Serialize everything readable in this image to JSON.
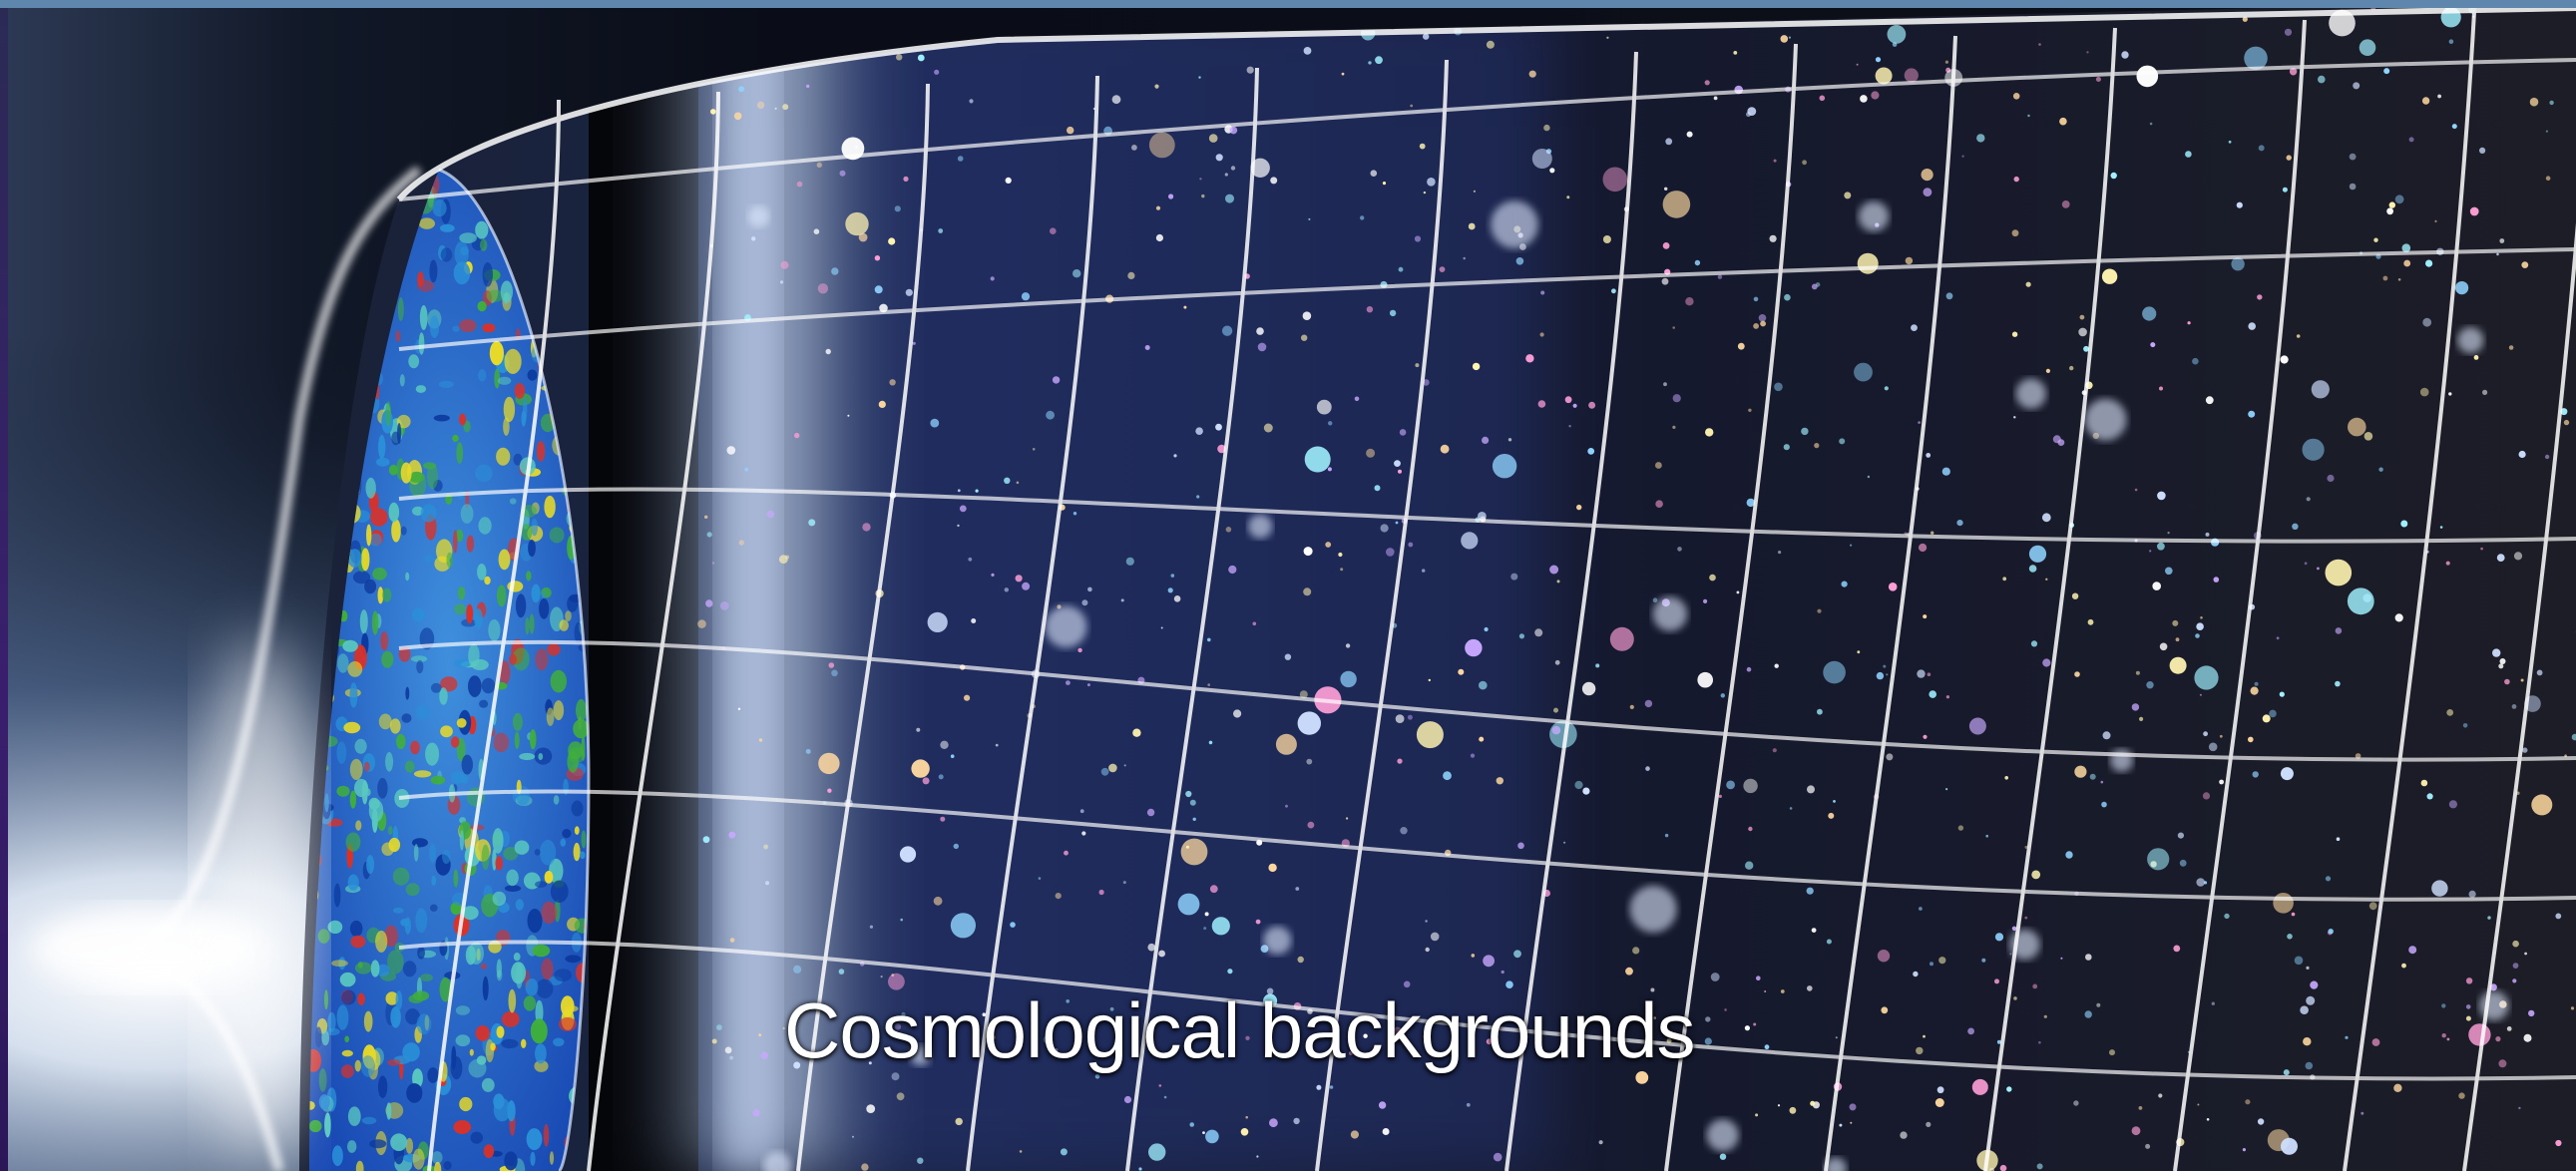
{
  "slide": {
    "caption": "Cosmological backgrounds"
  },
  "colors": {
    "top_bar": "#5f86ad",
    "left_strip": "#3a1e6e",
    "caption_text": "#ffffff",
    "cmb_blue": "#1c5fc8",
    "cmb_green": "#3fae3c",
    "cmb_yellow": "#e6d92a",
    "cmb_red": "#d8322a",
    "grid_lines": "#ffffff"
  }
}
